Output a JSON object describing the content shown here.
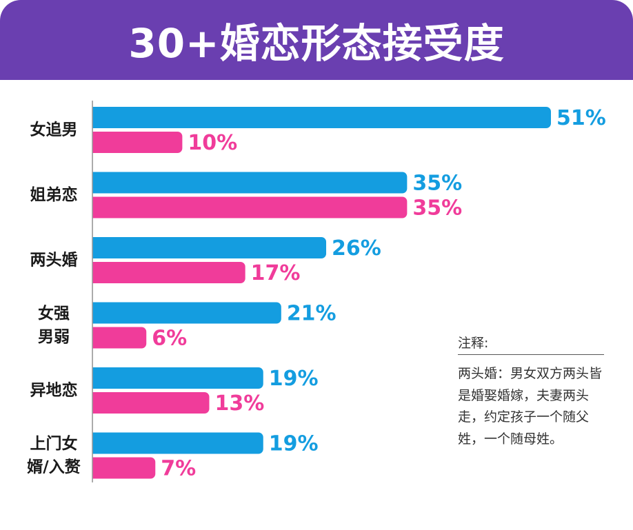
{
  "title": "30+婚恋形态接受度",
  "chart_data": {
    "type": "bar",
    "orientation": "horizontal",
    "title": "30+婚恋形态接受度",
    "categories": [
      "女追男",
      "姐弟恋",
      "两头婚",
      "女强男弱",
      "异地恋",
      "上门女婿/入赘"
    ],
    "category_lines": [
      [
        "女追男"
      ],
      [
        "姐弟恋"
      ],
      [
        "两头婚"
      ],
      [
        "女强",
        "男弱"
      ],
      [
        "异地恋"
      ],
      [
        "上门女",
        "婿/入赘"
      ]
    ],
    "series": [
      {
        "name": "series-blue",
        "color": "#149de0",
        "values": [
          51,
          35,
          26,
          21,
          19,
          19
        ],
        "labels": [
          "51%",
          "35%",
          "26%",
          "21%",
          "19%",
          "19%"
        ]
      },
      {
        "name": "series-pink",
        "color": "#f03c9a",
        "values": [
          10,
          35,
          17,
          6,
          13,
          7
        ],
        "labels": [
          "10%",
          "35%",
          "17%",
          "6%",
          "13%",
          "7%"
        ]
      }
    ],
    "xlim": [
      0,
      51
    ],
    "value_format": "percent"
  },
  "note": {
    "title": "注释:",
    "body": "两头婚：男女双方两头皆是婚娶婚嫁，夫妻两头走，约定孩子一个随父姓，一个随母姓。"
  }
}
